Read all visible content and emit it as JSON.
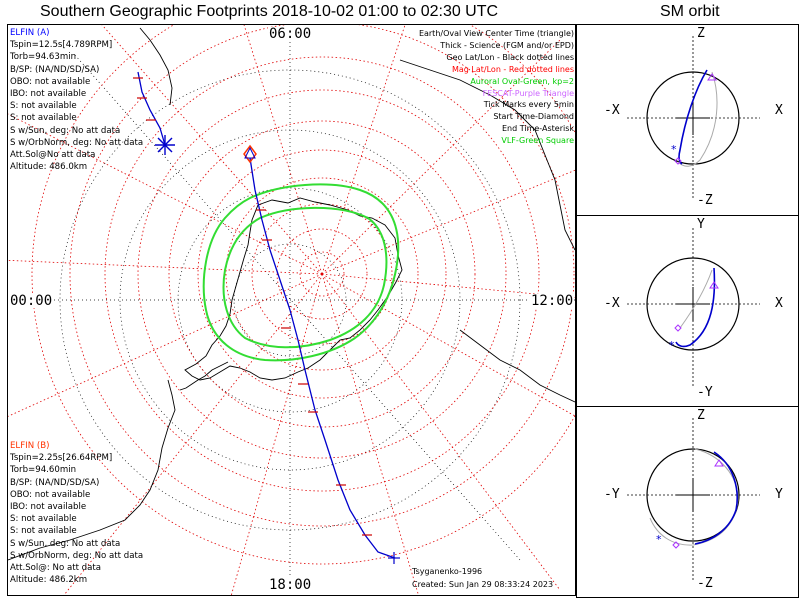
{
  "header": {
    "title": "Southern Geographic Footprints 2018-10-02 01:00 to 02:30 UTC",
    "orbit_title": "SM orbit"
  },
  "probe_a": {
    "name": "ELFIN (A)",
    "color": "#0000ff",
    "lines": [
      "Tspin=12.5s[4.789RPM]",
      "Torb=94.63min",
      "B/SP: (NA/ND/SD/SA)",
      "OBO: not available",
      "IBO: not available",
      "S: not available",
      "S: not available",
      "S w/Sun, deg: No att data",
      "S w/OrbNorm, deg: No att data",
      "Att.Sol@No att data",
      "Altitude: 486.0km"
    ]
  },
  "probe_b": {
    "name": "ELFIN (B)",
    "color": "#ff3300",
    "lines": [
      "Tspin=2.25s[26.64RPM]",
      "Torb=94.60min",
      "B/SP: (NA/ND/SD/SA)",
      "OBO: not available",
      "IBO: not available",
      "S: not available",
      "S: not available",
      "S w/Sun, deg: No att data",
      "S w/OrbNorm, deg: No att data",
      "Att.Sol@: No att data",
      "Altitude: 486.2km"
    ]
  },
  "legend": [
    {
      "text": "Earth/Oval View Center Time (triangle)",
      "color": "#000000"
    },
    {
      "text": "Thick - Science (FGM and/or EPD)",
      "color": "#000000"
    },
    {
      "text": "Geo Lat/Lon - Black dotted lines",
      "color": "#000000"
    },
    {
      "text": "Mag Lat/Lon - Red dotted lines",
      "color": "#ff0000"
    },
    {
      "text": "Auroral Oval-Green, kp=2",
      "color": "#00cc00"
    },
    {
      "text": "FESCAT-Purple Triangle",
      "color": "#cc66ff"
    },
    {
      "text": "Tick Marks every 5min",
      "color": "#000000"
    },
    {
      "text": "Start Time-Diamond",
      "color": "#000000"
    },
    {
      "text": "End Time-Asterisk",
      "color": "#000000"
    },
    {
      "text": "VLF-Green Square",
      "color": "#00cc00"
    }
  ],
  "mlt": {
    "top": "06:00",
    "left": "00:00",
    "right": "12:00",
    "bottom": "18:00"
  },
  "footer": {
    "model": "Tsyganenko-1996",
    "created": "Created: Sun Jan 29 08:33:24 2023"
  },
  "orbit_panels": [
    {
      "top": "Z",
      "bottom": "-Z",
      "left": "-X",
      "right": "X"
    },
    {
      "top": "Y",
      "bottom": "-Y",
      "left": "-X",
      "right": "X"
    },
    {
      "top": "Z",
      "bottom": "-Z",
      "left": "-Y",
      "right": "Y"
    }
  ]
}
